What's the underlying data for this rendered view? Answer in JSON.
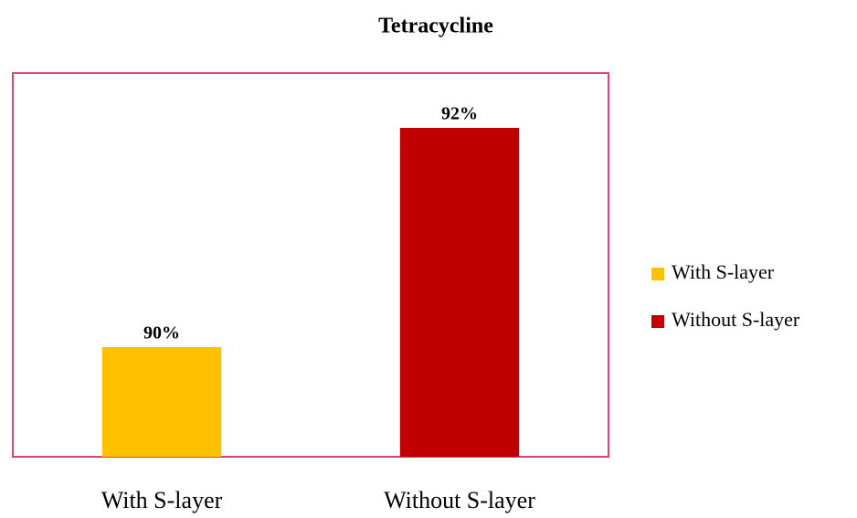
{
  "chart_data": {
    "type": "bar",
    "title": "Tetracycline",
    "categories": [
      "With S-layer",
      "Without S-layer"
    ],
    "values": [
      90,
      92
    ],
    "value_labels": [
      "90%",
      "92%"
    ],
    "colors": [
      "#ffc000",
      "#c00000"
    ],
    "ylim": [
      89,
      92.5
    ],
    "legend": "right"
  }
}
